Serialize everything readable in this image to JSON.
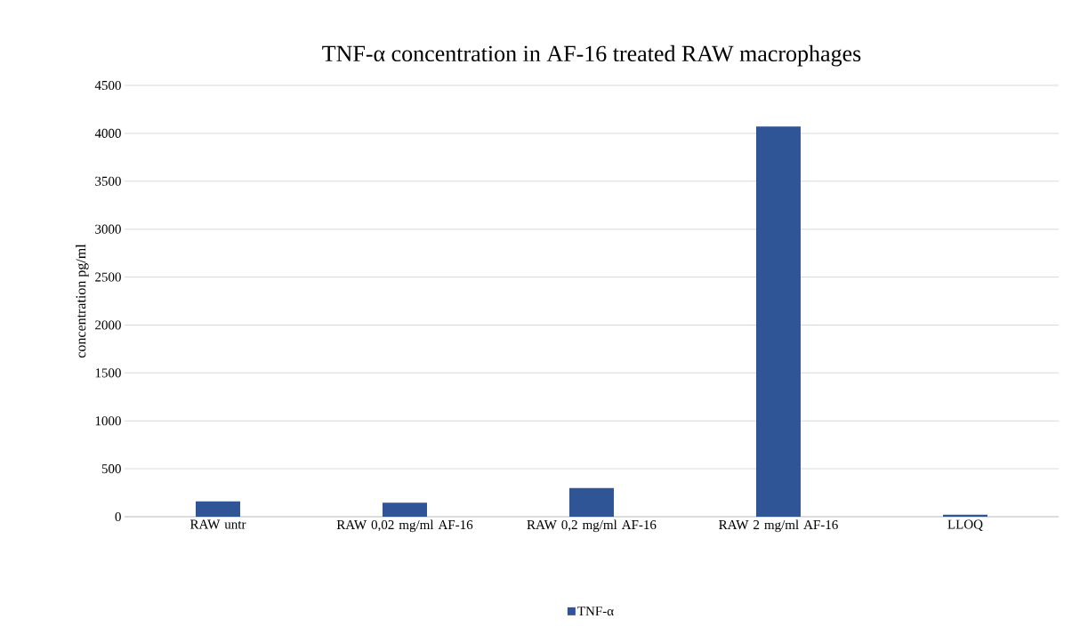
{
  "chart_data": {
    "type": "bar",
    "title": "TNF-α concentration in AF-16 treated RAW macrophages",
    "ylabel": "concentration pg/ml",
    "categories": [
      "RAW untr",
      "RAW 0,02 mg/ml AF-16",
      "RAW 0,2 mg/ml AF-16",
      "RAW 2 mg/ml AF-16",
      "LLOQ"
    ],
    "series": [
      {
        "name": "TNF-α",
        "color": "#2f5597",
        "values": [
          160,
          145,
          300,
          4070,
          20
        ]
      }
    ],
    "ylim": [
      0,
      4500
    ],
    "yticks": [
      0,
      500,
      1000,
      1500,
      2000,
      2500,
      3000,
      3500,
      4000,
      4500
    ],
    "grid": "y",
    "legend": "bottom"
  }
}
